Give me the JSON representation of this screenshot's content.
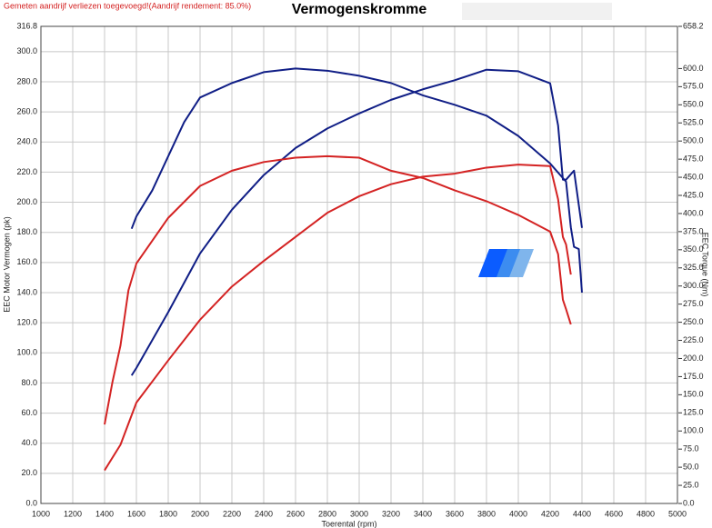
{
  "chart_data": {
    "type": "line",
    "title": "Vermogenskromme",
    "note": "Gemeten aandrijf verliezen toegevoegd!(Aandrijf rendement: 85.0%)",
    "x_label": "Toerental (rpm)",
    "y_label": "EEC Motor Vermogen (pk)",
    "y2_label": "EEC Torque (Nm)",
    "grid": true,
    "xlim": [
      1000,
      5000
    ],
    "xticks": [
      1000,
      1200,
      1400,
      1600,
      1800,
      2000,
      2200,
      2400,
      2600,
      2800,
      3000,
      3200,
      3400,
      3600,
      3800,
      4000,
      4200,
      4400,
      4600,
      4800,
      5000
    ],
    "ylim": [
      0,
      316.8
    ],
    "yticks": [
      {
        "value": 0,
        "label": "0.0"
      },
      {
        "value": 20,
        "label": "20.0"
      },
      {
        "value": 40,
        "label": "40.0"
      },
      {
        "value": 60,
        "label": "60.0"
      },
      {
        "value": 80,
        "label": "80.0"
      },
      {
        "value": 100,
        "label": "100.0"
      },
      {
        "value": 120,
        "label": "120.0"
      },
      {
        "value": 140,
        "label": "140.0"
      },
      {
        "value": 160,
        "label": "160.0"
      },
      {
        "value": 180,
        "label": "180.0"
      },
      {
        "value": 200,
        "label": "200.0"
      },
      {
        "value": 220,
        "label": "220.0"
      },
      {
        "value": 240,
        "label": "240.0"
      },
      {
        "value": 260,
        "label": "260.0"
      },
      {
        "value": 280,
        "label": "280.0"
      },
      {
        "value": 300,
        "label": "300.0"
      },
      {
        "value": 316.8,
        "label": "316.8"
      }
    ],
    "y2lim": [
      0,
      658.2
    ],
    "y2ticks": [
      {
        "value": 0,
        "label": "0.0"
      },
      {
        "value": 25,
        "label": "25.0"
      },
      {
        "value": 50,
        "label": "50.0"
      },
      {
        "value": 75,
        "label": "75.0"
      },
      {
        "value": 100,
        "label": "100.0"
      },
      {
        "value": 125,
        "label": "125.0"
      },
      {
        "value": 150,
        "label": "150.0"
      },
      {
        "value": 175,
        "label": "175.0"
      },
      {
        "value": 200,
        "label": "200.0"
      },
      {
        "value": 225,
        "label": "225.0"
      },
      {
        "value": 250,
        "label": "250.0"
      },
      {
        "value": 275,
        "label": "275.0"
      },
      {
        "value": 300,
        "label": "300.0"
      },
      {
        "value": 325,
        "label": "325.0"
      },
      {
        "value": 350,
        "label": "350.0"
      },
      {
        "value": 375,
        "label": "375.0"
      },
      {
        "value": 400,
        "label": "400.0"
      },
      {
        "value": 425,
        "label": "425.0"
      },
      {
        "value": 450,
        "label": "450.0"
      },
      {
        "value": 475,
        "label": "475.0"
      },
      {
        "value": 500,
        "label": "500.0"
      },
      {
        "value": 525,
        "label": "525.0"
      },
      {
        "value": 550,
        "label": "550.0"
      },
      {
        "value": 575,
        "label": "575.0"
      },
      {
        "value": 600,
        "label": "600.0"
      },
      {
        "value": 658.2,
        "label": "658.2"
      }
    ],
    "series": [
      {
        "color": "#101e86",
        "axis": "y",
        "x": [
          1570,
          1600,
          1800,
          2000,
          2200,
          2400,
          2600,
          2800,
          3000,
          3200,
          3400,
          3600,
          3800,
          4000,
          4200,
          4250,
          4280,
          4300,
          4350,
          4400
        ],
        "values": [
          85,
          90,
          127,
          166,
          195,
          218,
          236,
          249,
          259,
          268,
          275,
          281,
          288,
          287,
          279,
          251,
          215,
          215,
          221,
          183
        ]
      },
      {
        "color": "#101e86",
        "axis": "y2",
        "x": [
          1570,
          1600,
          1700,
          1800,
          1900,
          2000,
          2200,
          2400,
          2600,
          2800,
          3000,
          3200,
          3400,
          3600,
          3800,
          4000,
          4200,
          4300,
          4330,
          4350,
          4380,
          4400
        ],
        "values": [
          379,
          396,
          432,
          479,
          526,
          560,
          580,
          595,
          600,
          597,
          590,
          580,
          563,
          550,
          535,
          507,
          469,
          444,
          381,
          354,
          351,
          291
        ]
      },
      {
        "color": "#d42323",
        "axis": "y",
        "x": [
          1400,
          1500,
          1600,
          1800,
          2000,
          2200,
          2400,
          2600,
          2800,
          3000,
          3200,
          3400,
          3600,
          3800,
          4000,
          4200,
          4250,
          4280,
          4300,
          4330
        ],
        "values": [
          22,
          39,
          67,
          95,
          122,
          144,
          161,
          177,
          193,
          204,
          212,
          217,
          219,
          223,
          225,
          224,
          202,
          177,
          172,
          152
        ]
      },
      {
        "color": "#d42323",
        "axis": "y2",
        "x": [
          1400,
          1450,
          1500,
          1550,
          1600,
          1800,
          2000,
          2200,
          2400,
          2600,
          2800,
          3000,
          3200,
          3400,
          3600,
          3800,
          4000,
          4200,
          4250,
          4280,
          4300,
          4330
        ],
        "values": [
          109,
          168,
          218,
          294,
          331,
          394,
          438,
          459,
          471,
          477,
          479,
          477,
          459,
          449,
          432,
          417,
          398,
          375,
          344,
          281,
          268,
          247
        ]
      }
    ]
  }
}
